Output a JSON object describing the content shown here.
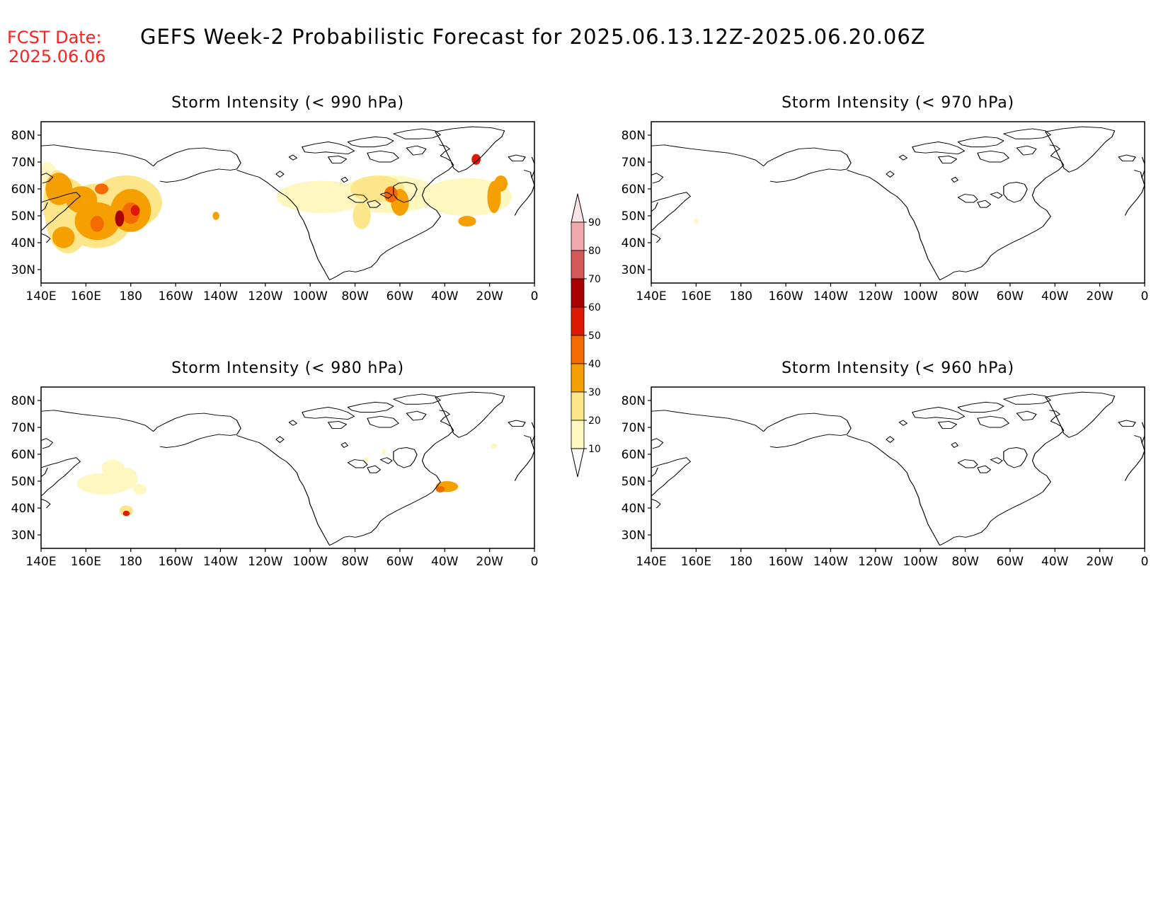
{
  "header": {
    "fcst_label": "FCST Date:",
    "fcst_date": "2025.06.06",
    "title": "GEFS Week-2 Probabilistic Forecast for 2025.06.13.12Z-2025.06.20.06Z"
  },
  "colors": {
    "fcst": "#ff2020",
    "text": "#000000",
    "coast": "#000000",
    "levels": [
      "#fff7c0",
      "#fde68a",
      "#f5a000",
      "#f26a00",
      "#dd1a00",
      "#a80000",
      "#d45a5a",
      "#f0a8ac",
      "#fde4e4"
    ]
  },
  "axes": {
    "lon_ticks": [
      "140E",
      "160E",
      "180",
      "160W",
      "140W",
      "120W",
      "100W",
      "80W",
      "60W",
      "40W",
      "20W",
      "0"
    ],
    "lat_ticks": [
      "80N",
      "70N",
      "60N",
      "50N",
      "40N",
      "30N"
    ],
    "lon_range": [
      140,
      360
    ],
    "lat_range": [
      25,
      85
    ]
  },
  "colorbar": {
    "levels": [
      "90",
      "80",
      "70",
      "60",
      "50",
      "40",
      "30",
      "20",
      "10"
    ]
  },
  "panels": [
    {
      "id": "p990",
      "title": "Storm Intensity (< 990 hPa)",
      "blobs": [
        {
          "lon": 143,
          "lat": 65,
          "rlon": 4,
          "rlat": 5,
          "level": 1
        },
        {
          "lon": 147,
          "lat": 55,
          "rlon": 6,
          "rlat": 12,
          "level": 2
        },
        {
          "lon": 152,
          "lat": 50,
          "rlon": 10,
          "rlat": 14,
          "level": 2
        },
        {
          "lon": 165,
          "lat": 50,
          "rlon": 16,
          "rlat": 12,
          "level": 2
        },
        {
          "lon": 178,
          "lat": 55,
          "rlon": 16,
          "rlat": 10,
          "level": 2
        },
        {
          "lon": 148,
          "lat": 60,
          "rlon": 6,
          "rlat": 6,
          "level": 3
        },
        {
          "lon": 158,
          "lat": 56,
          "rlon": 7,
          "rlat": 5,
          "level": 3
        },
        {
          "lon": 165,
          "lat": 48,
          "rlon": 10,
          "rlat": 7,
          "level": 3
        },
        {
          "lon": 180,
          "lat": 52,
          "rlon": 9,
          "rlat": 8,
          "level": 3
        },
        {
          "lon": 150,
          "lat": 42,
          "rlon": 5,
          "rlat": 4,
          "level": 3
        },
        {
          "lon": 165,
          "lat": 47,
          "rlon": 3,
          "rlat": 3,
          "level": 4
        },
        {
          "lon": 180,
          "lat": 51,
          "rlon": 4,
          "rlat": 4,
          "level": 4
        },
        {
          "lon": 167,
          "lat": 60,
          "rlon": 3,
          "rlat": 2,
          "level": 4
        },
        {
          "lon": 175,
          "lat": 49,
          "rlon": 2,
          "rlat": 3,
          "level": 6
        },
        {
          "lon": 182,
          "lat": 52,
          "rlon": 2,
          "rlat": 2,
          "level": 5
        },
        {
          "lon": 218,
          "lat": 50,
          "rlon": 1.5,
          "rlat": 1.5,
          "level": 3
        },
        {
          "lon": 265,
          "lat": 57,
          "rlon": 20,
          "rlat": 6,
          "level": 1
        },
        {
          "lon": 295,
          "lat": 58,
          "rlon": 22,
          "rlat": 7,
          "level": 1
        },
        {
          "lon": 330,
          "lat": 57,
          "rlon": 20,
          "rlat": 7,
          "level": 1
        },
        {
          "lon": 290,
          "lat": 60,
          "rlon": 12,
          "rlat": 5,
          "level": 2
        },
        {
          "lon": 300,
          "lat": 55,
          "rlon": 4,
          "rlat": 5,
          "level": 3
        },
        {
          "lon": 296,
          "lat": 58,
          "rlon": 3,
          "rlat": 3,
          "level": 4
        },
        {
          "lon": 283,
          "lat": 50,
          "rlon": 4,
          "rlat": 5,
          "level": 2
        },
        {
          "lon": 342,
          "lat": 57,
          "rlon": 3,
          "rlat": 6,
          "level": 3
        },
        {
          "lon": 330,
          "lat": 48,
          "rlon": 4,
          "rlat": 2,
          "level": 3
        },
        {
          "lon": 334,
          "lat": 71,
          "rlon": 2,
          "rlat": 2,
          "level": 5
        },
        {
          "lon": 345,
          "lat": 62,
          "rlon": 3,
          "rlat": 3,
          "level": 3
        }
      ]
    },
    {
      "id": "p970",
      "title": "Storm Intensity (< 970 hPa)",
      "blobs": [
        {
          "lon": 160,
          "lat": 48,
          "rlon": 1,
          "rlat": 1,
          "level": 1
        }
      ]
    },
    {
      "id": "p980",
      "title": "Storm Intensity (< 980 hPa)",
      "blobs": [
        {
          "lon": 172,
          "lat": 55,
          "rlon": 5,
          "rlat": 3,
          "level": 1
        },
        {
          "lon": 168,
          "lat": 49,
          "rlon": 12,
          "rlat": 4,
          "level": 1
        },
        {
          "lon": 178,
          "lat": 51,
          "rlon": 5,
          "rlat": 4,
          "level": 1
        },
        {
          "lon": 184,
          "lat": 47,
          "rlon": 3,
          "rlat": 2,
          "level": 1
        },
        {
          "lon": 178,
          "lat": 39,
          "rlon": 3,
          "rlat": 2,
          "level": 2
        },
        {
          "lon": 178,
          "lat": 38,
          "rlon": 1.5,
          "rlat": 1,
          "level": 5
        },
        {
          "lon": 285,
          "lat": 58,
          "rlon": 1,
          "rlat": 1,
          "level": 1
        },
        {
          "lon": 293,
          "lat": 61,
          "rlon": 1,
          "rlat": 1,
          "level": 1
        },
        {
          "lon": 321,
          "lat": 48,
          "rlon": 5,
          "rlat": 2,
          "level": 3
        },
        {
          "lon": 318,
          "lat": 47,
          "rlon": 2,
          "rlat": 1.2,
          "level": 4
        },
        {
          "lon": 342,
          "lat": 63,
          "rlon": 1.5,
          "rlat": 1,
          "level": 1
        }
      ]
    },
    {
      "id": "p960",
      "title": "Storm Intensity (< 960 hPa)",
      "blobs": []
    }
  ]
}
